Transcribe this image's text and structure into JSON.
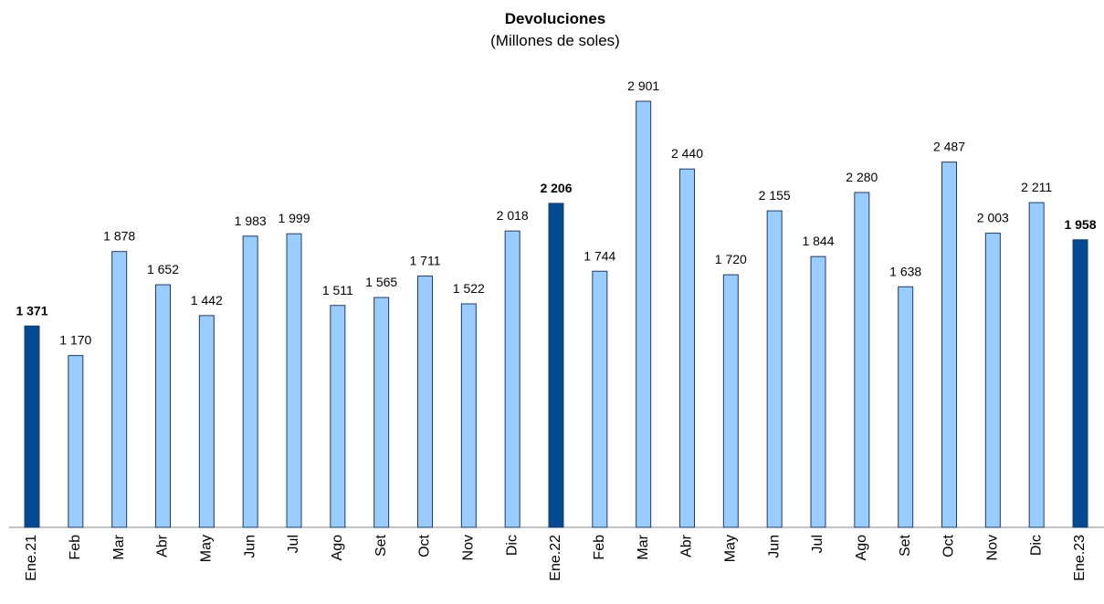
{
  "chart_data": {
    "type": "bar",
    "title": "Devoluciones",
    "subtitle": "(Millones de soles)",
    "categories": [
      "Ene.21",
      "Feb",
      "Mar",
      "Abr",
      "May",
      "Jun",
      "Jul",
      "Ago",
      "Set",
      "Oct",
      "Nov",
      "Dic",
      "Ene.22",
      "Feb",
      "Mar",
      "Abr",
      "May",
      "Jun",
      "Jul",
      "Ago",
      "Set",
      "Oct",
      "Nov",
      "Dic",
      "Ene.23"
    ],
    "values": [
      1371,
      1170,
      1878,
      1652,
      1442,
      1983,
      1999,
      1511,
      1565,
      1711,
      1522,
      2018,
      2206,
      1744,
      2901,
      2440,
      1720,
      2155,
      1844,
      2280,
      1638,
      2487,
      2003,
      2211,
      1958
    ],
    "value_labels": [
      "1 371",
      "1 170",
      "1 878",
      "1 652",
      "1 442",
      "1 983",
      "1 999",
      "1 511",
      "1 565",
      "1 711",
      "1 522",
      "2 018",
      "2 206",
      "1 744",
      "2 901",
      "2 440",
      "1 720",
      "2 155",
      "1 844",
      "2 280",
      "1 638",
      "2 487",
      "2 003",
      "2 211",
      "1 958"
    ],
    "colors": [
      "#004b93",
      "#99ccff",
      "#99ccff",
      "#99ccff",
      "#99ccff",
      "#99ccff",
      "#99ccff",
      "#99ccff",
      "#99ccff",
      "#99ccff",
      "#99ccff",
      "#99ccff",
      "#004b93",
      "#99ccff",
      "#99ccff",
      "#99ccff",
      "#99ccff",
      "#99ccff",
      "#99ccff",
      "#99ccff",
      "#99ccff",
      "#99ccff",
      "#99ccff",
      "#99ccff",
      "#004b93"
    ]
  }
}
